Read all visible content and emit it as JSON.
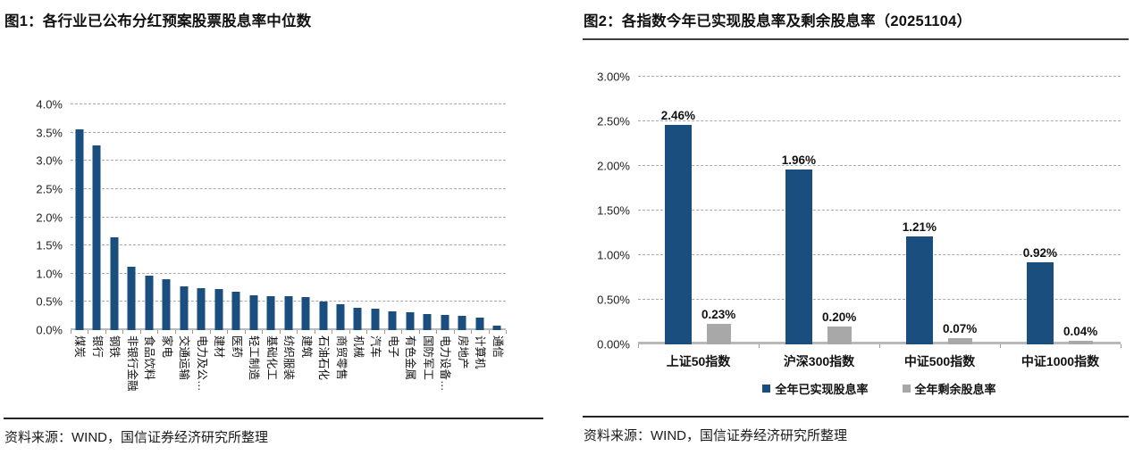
{
  "panels": [
    {
      "title": "图1：各行业已公布分红预案股票股息率中位数",
      "source": "资料来源：WIND，国信证券经济研究所整理"
    },
    {
      "title": "图2：各指数今年已实现股息率及剩余股息率（20251104）",
      "source": "资料来源：WIND，国信证券经济研究所整理"
    }
  ],
  "colors": {
    "bar_blue": "#1A4E7E",
    "bar_gray": "#A8A8A8",
    "gridline": "#A9A9A9",
    "axis": "#B9B9B9"
  },
  "chart_data": [
    {
      "type": "bar",
      "title": "各行业已公布分红预案股票股息率中位数",
      "categories": [
        "煤炭",
        "银行",
        "钢铁",
        "非银行金融",
        "食品饮料",
        "家电",
        "交通运输",
        "电力及公…",
        "建材",
        "医药",
        "轻工制造",
        "基础化工",
        "纺织服装",
        "建筑",
        "石油石化",
        "商贸零售",
        "机械",
        "汽车",
        "电子",
        "有色金属",
        "国防军工",
        "电力设备…",
        "房地产",
        "计算机",
        "通信"
      ],
      "values": [
        3.55,
        3.28,
        1.64,
        1.12,
        0.97,
        0.9,
        0.77,
        0.74,
        0.72,
        0.68,
        0.62,
        0.6,
        0.6,
        0.58,
        0.51,
        0.46,
        0.4,
        0.38,
        0.33,
        0.32,
        0.29,
        0.27,
        0.25,
        0.22,
        0.08
      ],
      "ylim": [
        0,
        4.0
      ],
      "ytick_labels": [
        "0.0%",
        "0.5%",
        "1.0%",
        "1.5%",
        "2.0%",
        "2.5%",
        "3.0%",
        "3.5%",
        "4.0%"
      ],
      "grid": true,
      "legend_position": "none",
      "xlabel": "",
      "ylabel": ""
    },
    {
      "type": "bar",
      "title": "各指数今年已实现股息率及剩余股息率（20251104）",
      "categories": [
        "上证50指数",
        "沪深300指数",
        "中证500指数",
        "中证1000指数"
      ],
      "series": [
        {
          "name": "全年已实现股息率",
          "color_key": "bar_blue",
          "values": [
            2.46,
            1.96,
            1.21,
            0.92
          ],
          "data_labels": [
            "2.46%",
            "1.96%",
            "1.21%",
            "0.92%"
          ]
        },
        {
          "name": "全年剩余股息率",
          "color_key": "bar_gray",
          "values": [
            0.23,
            0.2,
            0.07,
            0.04
          ],
          "data_labels": [
            "0.23%",
            "0.20%",
            "0.07%",
            "0.04%"
          ]
        }
      ],
      "ylim": [
        0,
        3.0
      ],
      "ytick_labels": [
        "0.00%",
        "0.50%",
        "1.00%",
        "1.50%",
        "2.00%",
        "2.50%",
        "3.00%"
      ],
      "grid": true,
      "legend": [
        "全年已实现股息率",
        "全年剩余股息率"
      ],
      "legend_position": "bottom",
      "xlabel": "",
      "ylabel": ""
    }
  ]
}
